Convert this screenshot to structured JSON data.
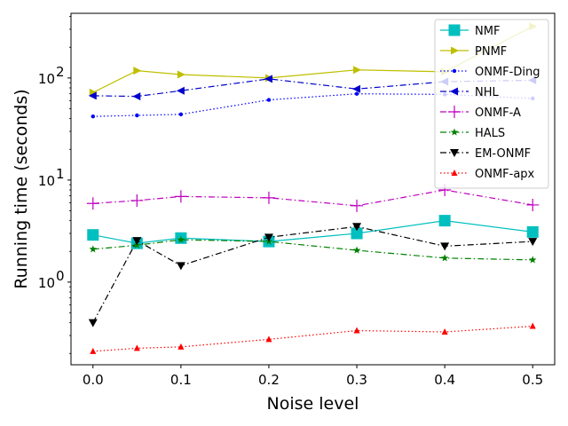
{
  "chart_data": {
    "type": "line",
    "xlabel": "Noise level",
    "ylabel": "Running time (seconds)",
    "yscale": "log",
    "x": [
      0.0,
      0.05,
      0.1,
      0.2,
      0.3,
      0.4,
      0.5
    ],
    "xlim": [
      -0.025,
      0.525
    ],
    "ylim": [
      0.155,
      430
    ],
    "x_ticks": [
      0.0,
      0.1,
      0.2,
      0.3,
      0.4,
      0.5
    ],
    "x_tick_labels": [
      "0.0",
      "0.1",
      "0.2",
      "0.3",
      "0.4",
      "0.5"
    ],
    "y_ticks": [
      1,
      10,
      100
    ],
    "y_tick_labels": [
      "10",
      "10",
      "10"
    ],
    "y_tick_exponents": [
      "0",
      "1",
      "2"
    ],
    "grid": false,
    "legend_position": "top-right",
    "series": [
      {
        "name": "NMF",
        "values": [
          2.9,
          2.4,
          2.7,
          2.5,
          3.0,
          4.0,
          3.1
        ],
        "color": "#00bfbf",
        "dash": "solid",
        "marker": "square"
      },
      {
        "name": "PNMF",
        "values": [
          72,
          118,
          108,
          100,
          120,
          115,
          320
        ],
        "color": "#bfbf00",
        "dash": "solid",
        "marker": "triangle-right"
      },
      {
        "name": "ONMF-Ding",
        "values": [
          42,
          43,
          44,
          61,
          70,
          69,
          63
        ],
        "color": "#0000ff",
        "dash": "dotted",
        "marker": "point"
      },
      {
        "name": "NHL",
        "values": [
          67,
          66,
          75,
          98,
          78,
          92,
          95
        ],
        "color": "#0000cc",
        "dash": "dashdot",
        "marker": "triangle-left"
      },
      {
        "name": "ONMF-A",
        "values": [
          5.9,
          6.3,
          6.9,
          6.7,
          5.6,
          8.0,
          5.7
        ],
        "color": "#bf00bf",
        "dash": "dashdot",
        "marker": "plus"
      },
      {
        "name": "HALS",
        "values": [
          2.1,
          2.3,
          2.6,
          2.5,
          2.05,
          1.72,
          1.65
        ],
        "color": "#008000",
        "dash": "dashdot",
        "marker": "star"
      },
      {
        "name": "EM-ONMF",
        "values": [
          0.4,
          2.55,
          1.45,
          2.75,
          3.5,
          2.25,
          2.5
        ],
        "color": "#000000",
        "dash": "dashdot",
        "marker": "triangle-down"
      },
      {
        "name": "ONMF-apx",
        "values": [
          0.21,
          0.225,
          0.232,
          0.275,
          0.335,
          0.325,
          0.37
        ],
        "color": "#ff0000",
        "dash": "dotted",
        "marker": "triangle-up"
      }
    ]
  }
}
